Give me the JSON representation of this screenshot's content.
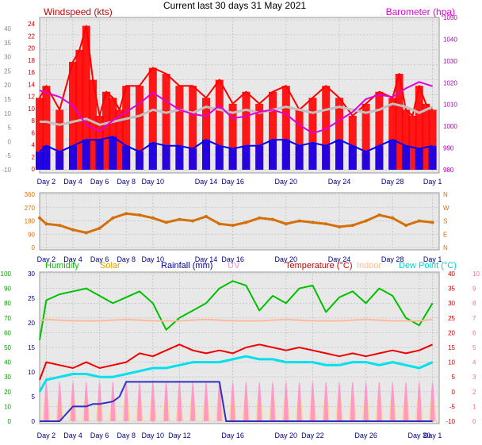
{
  "title": "Current last 30 days 31 May 2021",
  "chart_data": [
    {
      "type": "line",
      "panel": "wind-pressure",
      "left_axis_label": "Windspeed (kts)",
      "right_axis_label": "Barometer (hpa)",
      "left_axis_color": "#cc0000",
      "right_axis_color": "#dd00dd",
      "ylim_left": [
        0,
        25
      ],
      "ylim_right": [
        980,
        1050
      ],
      "outer_left_ticks": [
        "-10",
        "-5",
        "0",
        "5",
        "10",
        "15",
        "20",
        "25",
        "30",
        "35",
        "40"
      ],
      "inner_left_ticks": [
        "0",
        "2",
        "4",
        "6",
        "8",
        "10",
        "12",
        "14",
        "16",
        "18",
        "20",
        "22",
        "24"
      ],
      "right_ticks": [
        "980",
        "990",
        "1000",
        "1010",
        "1020",
        "1030",
        "1040",
        "1050"
      ],
      "x_ticks": [
        "Day 2",
        "Day 4",
        "Day 6",
        "Day 8",
        "Day 10",
        "Day 14",
        "Day 16",
        "Day 20",
        "Day 24",
        "Day 28",
        "Day 1"
      ],
      "series": [
        {
          "name": "Windspeed (kts)",
          "color": "#ff0000",
          "x": [
            1.5,
            2,
            3,
            4,
            4.5,
            5,
            5.5,
            6,
            6.5,
            7,
            7.5,
            8,
            9,
            10,
            11,
            12,
            13,
            14,
            15,
            16,
            17,
            18,
            19,
            20,
            21,
            22,
            23,
            24,
            25,
            26,
            27,
            28,
            28.5,
            29,
            29.5,
            30,
            30.5,
            31
          ],
          "y": [
            12,
            14,
            10,
            18,
            20,
            24,
            15,
            9,
            13,
            12,
            10,
            14,
            14,
            17,
            16,
            14,
            14,
            12,
            15,
            11,
            13,
            11,
            13,
            14,
            10,
            12,
            14,
            12,
            9,
            11,
            13,
            12,
            16,
            10,
            9,
            14,
            11,
            10
          ]
        },
        {
          "color": "#c0c0c0",
          "x": [
            1.5,
            2,
            3,
            4,
            5,
            6,
            7,
            8,
            9,
            10,
            11,
            12,
            13,
            14,
            15,
            16,
            17,
            18,
            19,
            20,
            21,
            22,
            23,
            24,
            25,
            26,
            27,
            28,
            29,
            30,
            31
          ],
          "y": [
            8,
            8,
            7.5,
            8,
            8.5,
            7.5,
            8,
            8.5,
            9,
            10,
            9.5,
            10,
            9.5,
            10.5,
            10,
            9.5,
            10,
            9.5,
            10,
            10.5,
            10,
            9.5,
            10,
            10.5,
            10,
            9.5,
            10,
            11,
            10.5,
            9.5,
            10.5
          ]
        },
        {
          "color": "#0000ff",
          "x": [
            1.5,
            2,
            3,
            4,
            5,
            6,
            7,
            8,
            9,
            10,
            11,
            12,
            13,
            14,
            15,
            16,
            17,
            18,
            19,
            20,
            21,
            22,
            23,
            24,
            25,
            26,
            27,
            28,
            29,
            30,
            31
          ],
          "y": [
            3,
            4,
            3,
            4,
            5,
            5,
            5.5,
            4,
            3,
            4.5,
            4,
            4,
            3.5,
            5,
            4,
            3.5,
            4,
            4,
            5,
            5,
            4,
            4.5,
            4,
            5,
            4,
            3,
            4,
            5,
            4,
            3.5,
            4
          ]
        },
        {
          "name": "Barometer (hpa)",
          "color": "#dd00dd",
          "axis": "right",
          "x": [
            1.5,
            2,
            3,
            4,
            5,
            6,
            7,
            8,
            9,
            10,
            11,
            12,
            13,
            14,
            15,
            16,
            17,
            18,
            19,
            20,
            21,
            22,
            23,
            24,
            25,
            26,
            27,
            28,
            29,
            30,
            31
          ],
          "y": [
            1017,
            1016,
            1014,
            1010,
            1001,
            998,
            1003,
            1007,
            1011,
            1016,
            1012,
            1008,
            1006,
            1005,
            1010,
            1004,
            1005,
            1007,
            1008,
            1006,
            1001,
            997,
            999,
            1003,
            1007,
            1013,
            1015,
            1014,
            1018,
            1021,
            1019
          ]
        }
      ]
    },
    {
      "type": "scatter",
      "panel": "wind-direction",
      "left_ticks": [
        "0",
        "90",
        "180",
        "270",
        "360"
      ],
      "right_ticks": [
        "N",
        "E",
        "S",
        "W",
        "N"
      ],
      "axis_color": "#d4700a",
      "ylim": [
        0,
        360
      ],
      "x_ticks": [
        "Day 2",
        "Day 4",
        "Day 6",
        "Day 8",
        "Day 10",
        "Day 14",
        "Day 16",
        "Day 20",
        "Day 24",
        "Day 28",
        "Day 1"
      ],
      "series": [
        {
          "color": "#d4700a",
          "x": [
            1.5,
            2,
            3,
            4,
            5,
            6,
            7,
            8,
            9,
            10,
            11,
            12,
            13,
            14,
            15,
            16,
            17,
            18,
            19,
            20,
            21,
            22,
            23,
            24,
            25,
            26,
            27,
            28,
            29,
            30,
            31
          ],
          "y": [
            200,
            160,
            150,
            120,
            100,
            130,
            200,
            230,
            220,
            200,
            170,
            190,
            180,
            210,
            160,
            150,
            170,
            200,
            190,
            160,
            180,
            170,
            160,
            140,
            150,
            180,
            220,
            200,
            150,
            180,
            170
          ]
        }
      ]
    },
    {
      "type": "line",
      "panel": "temperature-humidity",
      "legend": [
        {
          "label": "Humidity",
          "color": "#00c000"
        },
        {
          "label": "Solar",
          "color": "#e0a000"
        },
        {
          "label": "Rainfall (mm)",
          "color": "#0000a0"
        },
        {
          "label": "UV",
          "color": "#ff88cc"
        },
        {
          "label": "Temperature (°C)",
          "color": "#cc0000"
        },
        {
          "label": "Indoor",
          "color": "#ffbb99"
        },
        {
          "label": "Dew Point (°C)",
          "color": "#00d0d0"
        }
      ],
      "humidity_ticks": [
        "0",
        "10",
        "20",
        "30",
        "40",
        "50",
        "60",
        "70",
        "80",
        "90",
        "100"
      ],
      "rainfall_ticks": [
        "0",
        "5",
        "10",
        "15",
        "20",
        "25",
        "30"
      ],
      "temperature_ticks": [
        "-10",
        "-5",
        "0",
        "5",
        "10",
        "15",
        "20",
        "25",
        "30",
        "35",
        "40"
      ],
      "uv_ticks": [
        "0",
        "1",
        "2",
        "3",
        "4",
        "5",
        "6",
        "7",
        "8",
        "9",
        "10"
      ],
      "x_ticks": [
        "Day 2",
        "Day 4",
        "Day 6",
        "Day 8",
        "Day 10",
        "Day 12",
        "Day 16",
        "Day 20",
        "Day 22",
        "Day 26",
        "Day 30",
        "Day 1"
      ],
      "series": [
        {
          "name": "Humidity",
          "color": "#00c000",
          "axis": "humidity",
          "x": [
            1.5,
            2,
            3,
            4,
            5,
            6,
            7,
            8,
            9,
            10,
            11,
            12,
            13,
            14,
            15,
            16,
            17,
            18,
            19,
            20,
            21,
            22,
            23,
            24,
            25,
            26,
            27,
            28,
            29,
            30,
            31
          ],
          "y": [
            55,
            82,
            86,
            88,
            90,
            85,
            80,
            84,
            88,
            80,
            62,
            70,
            75,
            80,
            90,
            95,
            92,
            75,
            85,
            80,
            90,
            92,
            74,
            84,
            88,
            80,
            90,
            85,
            70,
            65,
            80
          ]
        },
        {
          "name": "Indoor",
          "color": "#ffbb99",
          "axis": "temperature",
          "x": [
            1.5,
            2,
            4,
            6,
            8,
            10,
            12,
            14,
            16,
            18,
            20,
            22,
            24,
            26,
            28,
            30,
            31
          ],
          "y": [
            24,
            24.5,
            24,
            24,
            24.5,
            24,
            24,
            24.5,
            24,
            24,
            24.5,
            24,
            24,
            24.5,
            24,
            24,
            24.5
          ]
        },
        {
          "name": "Temperature (°C)",
          "color": "#ee0000",
          "axis": "temperature",
          "x": [
            1.5,
            2,
            3,
            4,
            5,
            6,
            7,
            8,
            9,
            10,
            11,
            12,
            13,
            14,
            15,
            16,
            17,
            18,
            19,
            20,
            21,
            22,
            23,
            24,
            25,
            26,
            27,
            28,
            29,
            30,
            31
          ],
          "y": [
            4,
            10,
            9,
            8,
            10,
            8,
            9,
            10,
            13,
            12,
            14,
            16,
            14,
            13,
            14,
            13,
            15,
            16,
            15,
            14,
            15,
            14,
            13,
            12,
            13,
            12,
            13,
            14,
            13,
            14,
            16
          ]
        },
        {
          "name": "Dew Point (°C)",
          "color": "#00e0ee",
          "axis": "temperature",
          "x": [
            1.5,
            2,
            3,
            4,
            5,
            6,
            7,
            8,
            9,
            10,
            11,
            12,
            13,
            14,
            15,
            16,
            17,
            18,
            19,
            20,
            21,
            22,
            23,
            24,
            25,
            26,
            27,
            28,
            29,
            30,
            31
          ],
          "y": [
            0,
            4,
            5,
            6,
            6,
            5,
            5,
            6,
            7,
            8,
            8,
            9,
            10,
            10,
            10,
            11,
            12,
            11,
            11,
            10,
            10,
            10,
            9,
            9,
            10,
            10,
            9,
            10,
            9,
            8,
            10
          ]
        },
        {
          "name": "Rainfall (mm)",
          "color": "#3030c0",
          "axis": "rainfall",
          "x": [
            1.5,
            2,
            3,
            4,
            5,
            5.5,
            6,
            7,
            7.5,
            8,
            9,
            10,
            11,
            12,
            13,
            14,
            15,
            15.5,
            16,
            17,
            18,
            19,
            20,
            21,
            22,
            23,
            24,
            25,
            25.5,
            26,
            27,
            28,
            29,
            30,
            31
          ],
          "y": [
            0,
            0,
            0,
            3,
            3,
            3.5,
            3.5,
            4,
            5,
            8,
            8,
            8,
            8,
            8,
            8,
            8,
            8,
            0,
            0,
            0,
            0,
            0,
            0,
            0,
            0,
            0,
            0,
            0,
            0,
            0,
            0,
            0,
            0,
            0,
            0
          ]
        }
      ]
    }
  ]
}
